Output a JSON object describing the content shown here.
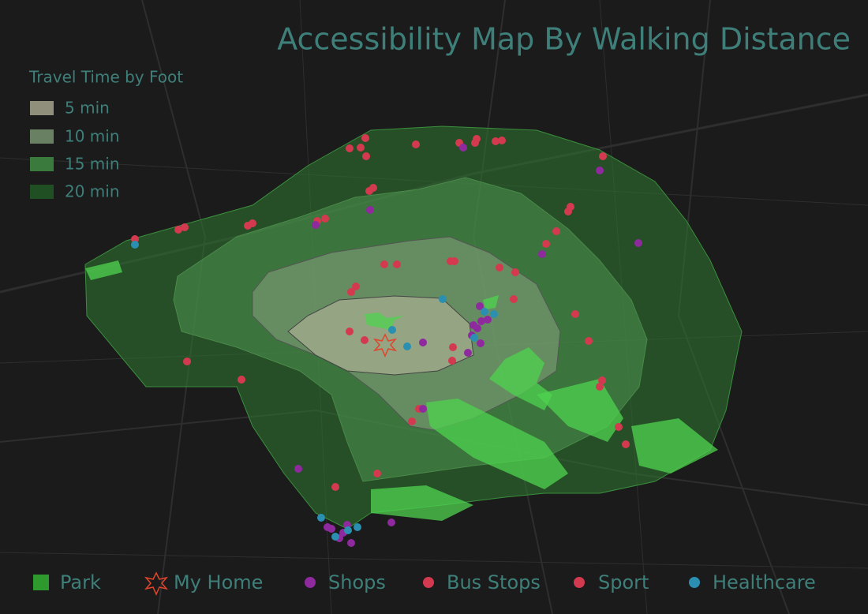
{
  "title": "Accessibility Map By Walking Distance",
  "travel_legend": {
    "title": "Travel Time by Foot",
    "items": [
      "5 min",
      "10 min",
      "15 min",
      "20 min"
    ]
  },
  "legend": [
    "Park",
    "My Home",
    "Shops",
    "Bus Stops",
    "Sport",
    "Healthcare"
  ]
}
